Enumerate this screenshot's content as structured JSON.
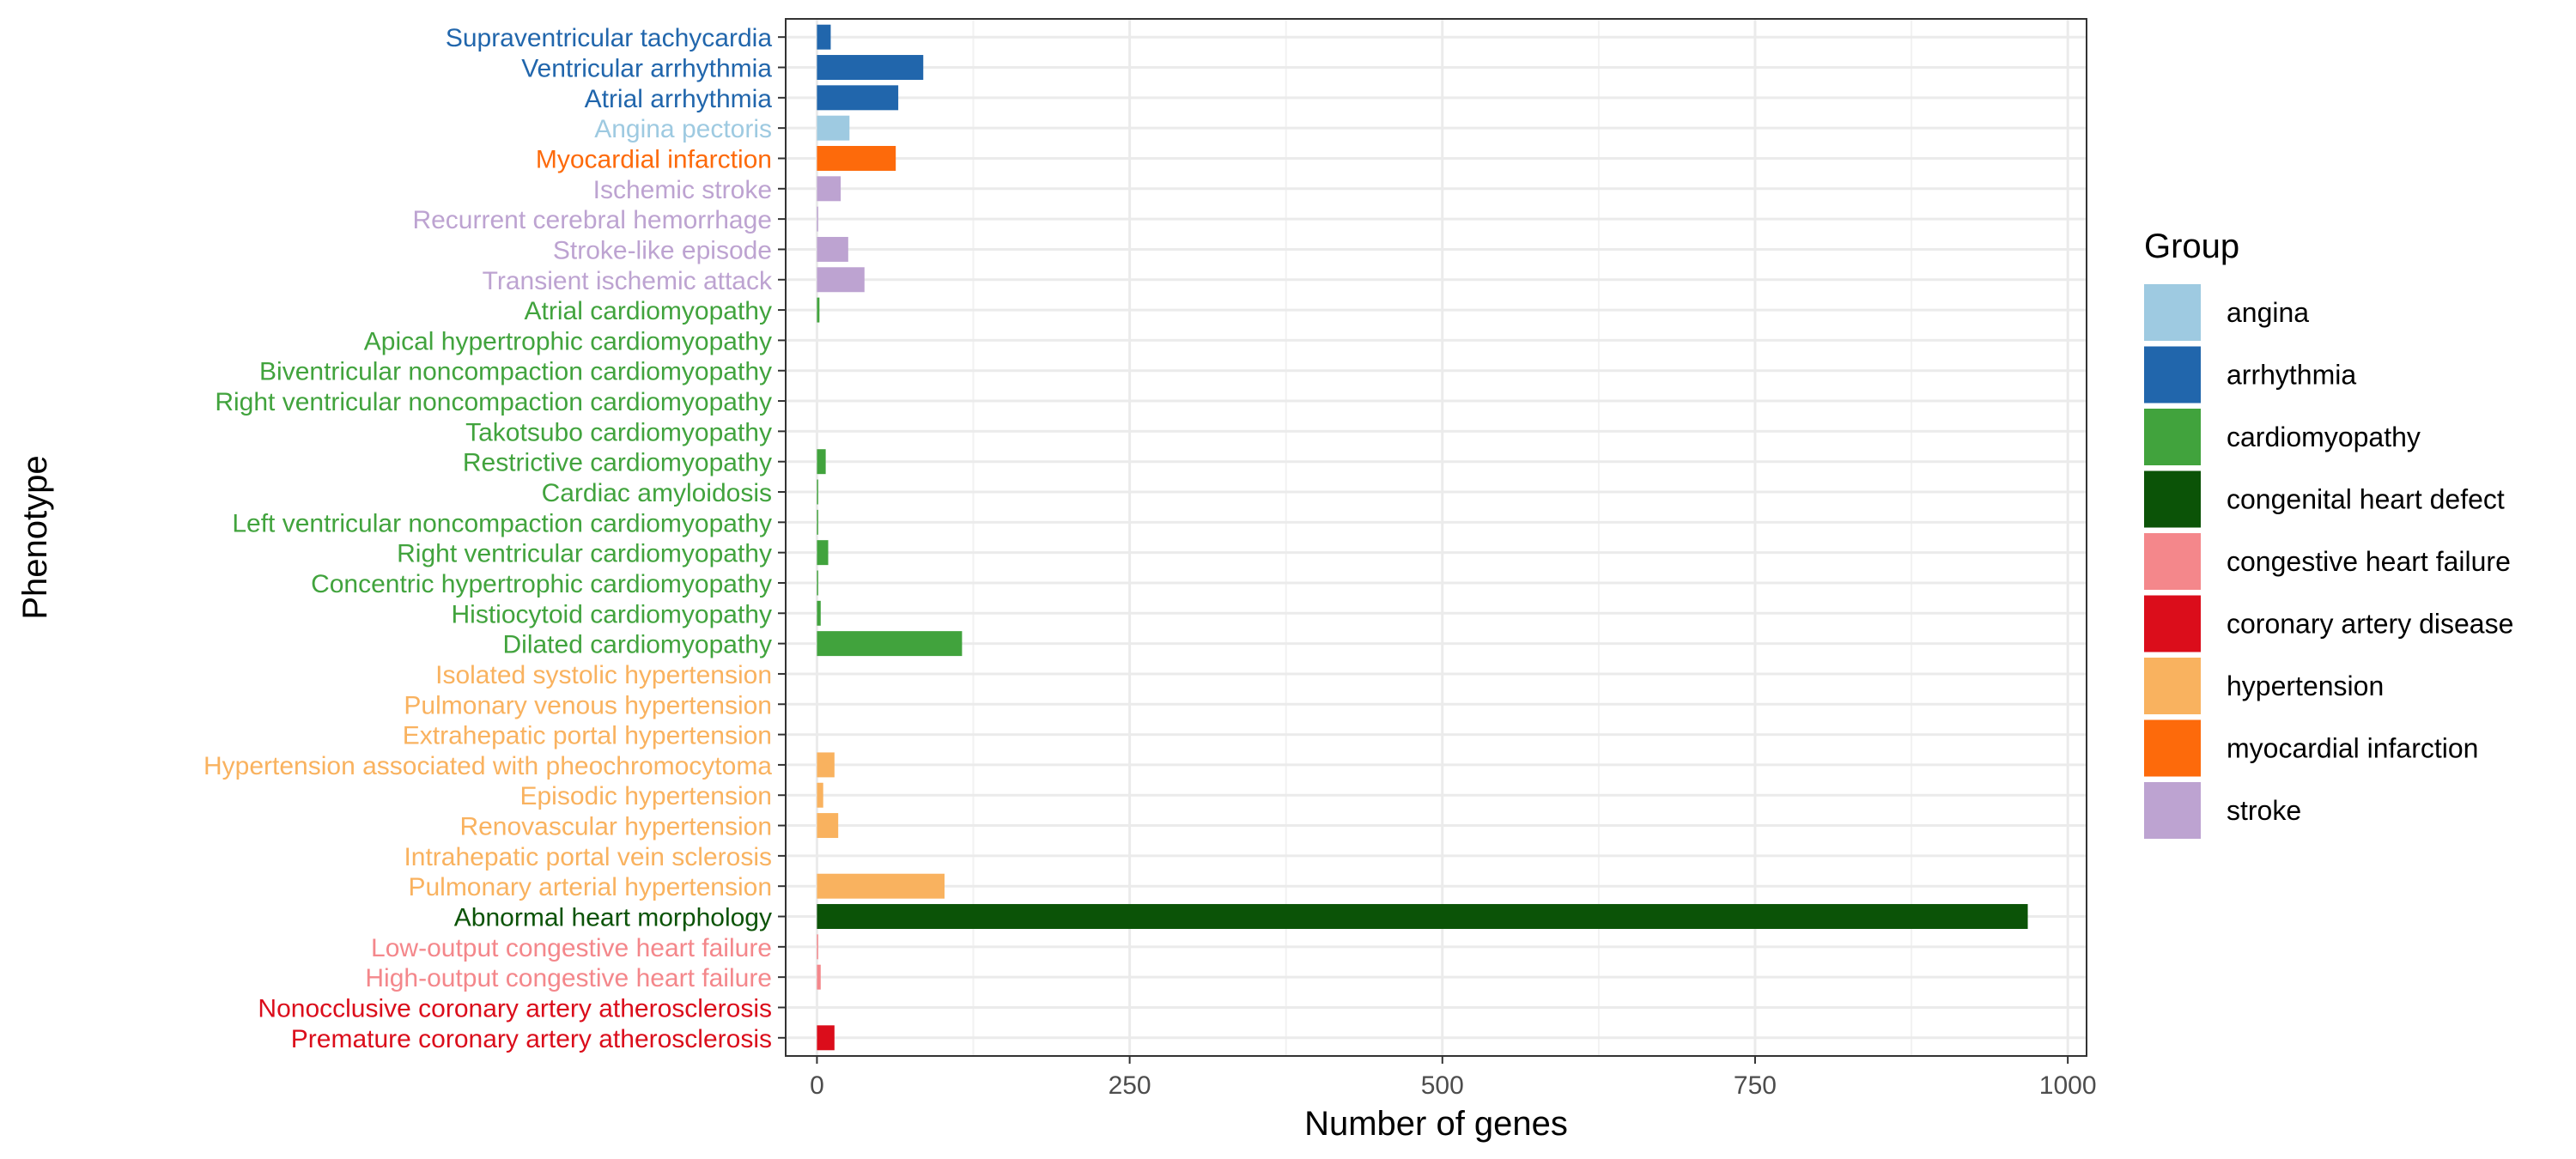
{
  "chart_data": {
    "type": "bar",
    "orientation": "horizontal",
    "xlabel": "Number of genes",
    "ylabel": "Phenotype",
    "xlim": [
      -25,
      1015
    ],
    "x_ticks": [
      0,
      250,
      500,
      750,
      1000
    ],
    "grid": true,
    "legend": {
      "title": "Group",
      "placement": "right",
      "entries": [
        {
          "label": "angina",
          "color": "#9ECAE1"
        },
        {
          "label": "arrhythmia",
          "color": "#2166AC"
        },
        {
          "label": "cardiomyopathy",
          "color": "#41A33D"
        },
        {
          "label": "congenital heart defect",
          "color": "#0B5307"
        },
        {
          "label": "congestive heart failure",
          "color": "#F4878B"
        },
        {
          "label": "coronary artery disease",
          "color": "#DB0D1B"
        },
        {
          "label": "hypertension",
          "color": "#F9B25F"
        },
        {
          "label": "myocardial infarction",
          "color": "#FD6A0B"
        },
        {
          "label": "stroke",
          "color": "#BDA3D1"
        }
      ]
    },
    "bars": [
      {
        "label": "Supraventricular tachycardia",
        "group": "arrhythmia",
        "value": 11
      },
      {
        "label": "Ventricular arrhythmia",
        "group": "arrhythmia",
        "value": 85
      },
      {
        "label": "Atrial arrhythmia",
        "group": "arrhythmia",
        "value": 65
      },
      {
        "label": "Angina pectoris",
        "group": "angina",
        "value": 26
      },
      {
        "label": "Myocardial infarction",
        "group": "myocardial infarction",
        "value": 63
      },
      {
        "label": "Ischemic stroke",
        "group": "stroke",
        "value": 19
      },
      {
        "label": "Recurrent cerebral hemorrhage",
        "group": "stroke",
        "value": 1
      },
      {
        "label": "Stroke-like episode",
        "group": "stroke",
        "value": 25
      },
      {
        "label": "Transient ischemic attack",
        "group": "stroke",
        "value": 38
      },
      {
        "label": "Atrial cardiomyopathy",
        "group": "cardiomyopathy",
        "value": 2
      },
      {
        "label": "Apical hypertrophic cardiomyopathy",
        "group": "cardiomyopathy",
        "value": 0
      },
      {
        "label": "Biventricular noncompaction cardiomyopathy",
        "group": "cardiomyopathy",
        "value": 0
      },
      {
        "label": "Right ventricular noncompaction cardiomyopathy",
        "group": "cardiomyopathy",
        "value": 0
      },
      {
        "label": "Takotsubo cardiomyopathy",
        "group": "cardiomyopathy",
        "value": 0
      },
      {
        "label": "Restrictive cardiomyopathy",
        "group": "cardiomyopathy",
        "value": 7
      },
      {
        "label": "Cardiac amyloidosis",
        "group": "cardiomyopathy",
        "value": 1
      },
      {
        "label": "Left ventricular noncompaction cardiomyopathy",
        "group": "cardiomyopathy",
        "value": 1
      },
      {
        "label": "Right ventricular cardiomyopathy",
        "group": "cardiomyopathy",
        "value": 9
      },
      {
        "label": "Concentric hypertrophic cardiomyopathy",
        "group": "cardiomyopathy",
        "value": 1
      },
      {
        "label": "Histiocytoid cardiomyopathy",
        "group": "cardiomyopathy",
        "value": 3
      },
      {
        "label": "Dilated cardiomyopathy",
        "group": "cardiomyopathy",
        "value": 116
      },
      {
        "label": "Isolated systolic hypertension",
        "group": "hypertension",
        "value": 0
      },
      {
        "label": "Pulmonary venous hypertension",
        "group": "hypertension",
        "value": 0
      },
      {
        "label": "Extrahepatic portal hypertension",
        "group": "hypertension",
        "value": 0
      },
      {
        "label": "Hypertension associated with pheochromocytoma",
        "group": "hypertension",
        "value": 14
      },
      {
        "label": "Episodic hypertension",
        "group": "hypertension",
        "value": 5
      },
      {
        "label": "Renovascular hypertension",
        "group": "hypertension",
        "value": 17
      },
      {
        "label": "Intrahepatic portal vein sclerosis",
        "group": "hypertension",
        "value": 0
      },
      {
        "label": "Pulmonary arterial hypertension",
        "group": "hypertension",
        "value": 102
      },
      {
        "label": "Abnormal heart morphology",
        "group": "congenital heart defect",
        "value": 968
      },
      {
        "label": "Low-output congestive heart failure",
        "group": "congestive heart failure",
        "value": 1
      },
      {
        "label": "High-output congestive heart failure",
        "group": "congestive heart failure",
        "value": 3
      },
      {
        "label": "Nonocclusive coronary artery atherosclerosis",
        "group": "coronary artery disease",
        "value": 0
      },
      {
        "label": "Premature coronary artery atherosclerosis",
        "group": "coronary artery disease",
        "value": 14
      }
    ]
  }
}
